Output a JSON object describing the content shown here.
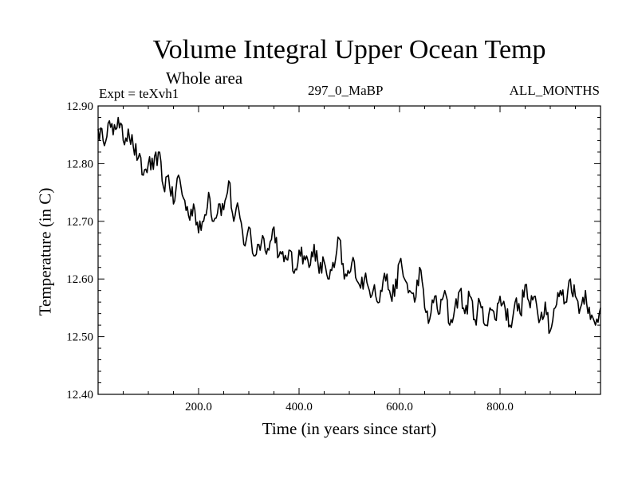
{
  "chart_data": {
    "type": "line",
    "title": "Volume Integral Upper Ocean Temp",
    "subtitle": "Whole area",
    "annotations": {
      "left": "Expt = teXvh1",
      "center": "297_0_MaBP",
      "right": "ALL_MONTHS"
    },
    "xlabel": "Time (in years since start)",
    "ylabel": "Temperature (in C)",
    "xlim": [
      0,
      1000
    ],
    "ylim": [
      12.4,
      12.9
    ],
    "x_tick_labels": [
      "200.0",
      "400.0",
      "600.0",
      "800.0"
    ],
    "x_tick_values": [
      200,
      400,
      600,
      800
    ],
    "y_tick_labels": [
      "12.40",
      "12.50",
      "12.60",
      "12.70",
      "12.80",
      "12.90"
    ],
    "y_tick_values": [
      12.4,
      12.5,
      12.6,
      12.7,
      12.8,
      12.9
    ],
    "series": [
      {
        "name": "teXvh1",
        "x": [
          0,
          10,
          20,
          30,
          40,
          50,
          60,
          70,
          80,
          90,
          100,
          110,
          120,
          130,
          140,
          150,
          160,
          170,
          180,
          190,
          200,
          210,
          220,
          230,
          240,
          250,
          260,
          270,
          280,
          290,
          300,
          310,
          320,
          330,
          340,
          350,
          360,
          370,
          380,
          390,
          400,
          410,
          420,
          430,
          440,
          450,
          460,
          470,
          480,
          490,
          500,
          510,
          520,
          530,
          540,
          550,
          560,
          570,
          580,
          590,
          600,
          610,
          620,
          630,
          640,
          650,
          660,
          670,
          680,
          690,
          700,
          710,
          720,
          730,
          740,
          750,
          760,
          770,
          780,
          790,
          800,
          810,
          820,
          830,
          840,
          850,
          860,
          870,
          880,
          890,
          900,
          910,
          920,
          930,
          940,
          950,
          960,
          970,
          980,
          990,
          1000
        ],
        "y": [
          12.86,
          12.84,
          12.87,
          12.85,
          12.88,
          12.84,
          12.86,
          12.83,
          12.81,
          12.78,
          12.8,
          12.79,
          12.82,
          12.76,
          12.78,
          12.73,
          12.78,
          12.74,
          12.71,
          12.73,
          12.68,
          12.7,
          12.75,
          12.7,
          12.73,
          12.72,
          12.77,
          12.7,
          12.72,
          12.66,
          12.69,
          12.64,
          12.66,
          12.67,
          12.65,
          12.69,
          12.64,
          12.63,
          12.65,
          12.61,
          12.65,
          12.64,
          12.62,
          12.66,
          12.61,
          12.63,
          12.6,
          12.62,
          12.67,
          12.6,
          12.61,
          12.63,
          12.59,
          12.6,
          12.58,
          12.59,
          12.56,
          12.61,
          12.58,
          12.57,
          12.63,
          12.6,
          12.58,
          12.56,
          12.62,
          12.55,
          12.53,
          12.57,
          12.54,
          12.58,
          12.52,
          12.55,
          12.58,
          12.54,
          12.57,
          12.53,
          12.56,
          12.52,
          12.55,
          12.53,
          12.57,
          12.55,
          12.52,
          12.56,
          12.54,
          12.59,
          12.55,
          12.57,
          12.53,
          12.56,
          12.51,
          12.55,
          12.58,
          12.56,
          12.6,
          12.57,
          12.55,
          12.58,
          12.53,
          12.52,
          12.55
        ]
      }
    ]
  }
}
